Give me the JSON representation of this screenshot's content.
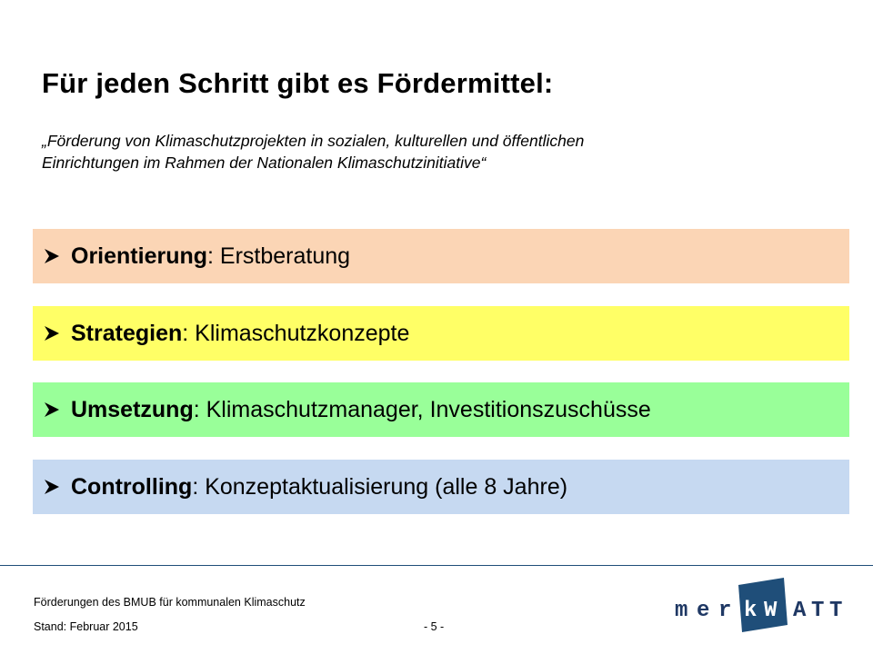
{
  "slide": {
    "title": "Für jeden Schritt gibt es Fördermittel:",
    "subtitle_line1": "„Förderung von Klimaschutzprojekten in sozialen, kulturellen und öffentlichen",
    "subtitle_line2": "Einrichtungen im Rahmen der Nationalen Klimaschutzinitiative“"
  },
  "bars": [
    {
      "keyword": "Orientierung",
      "text": ": Erstberatung",
      "color": "#fbd5b5"
    },
    {
      "keyword": "Strategien",
      "text": ": Klimaschutzkonzepte",
      "color": "#ffff66"
    },
    {
      "keyword": "Umsetzung",
      "text": ": Klimaschutzmanager, Investitionszuschüsse",
      "color": "#99ff99"
    },
    {
      "keyword": "Controlling",
      "text": ": Konzeptaktualisierung (alle 8 Jahre)",
      "color": "#c6d9f1"
    }
  ],
  "bullet_icon": "arrowhead-bullet-icon",
  "footer": {
    "line1": "Förderungen des BMUB für kommunalen Klimaschutz",
    "stand": "Stand: Februar 2015",
    "page": "- 5 -"
  },
  "logo": {
    "letters_left": "mer",
    "letters_box": "kW",
    "letters_right": "ATT",
    "color_text": "#1f3864",
    "color_box": "#1f4e79"
  }
}
